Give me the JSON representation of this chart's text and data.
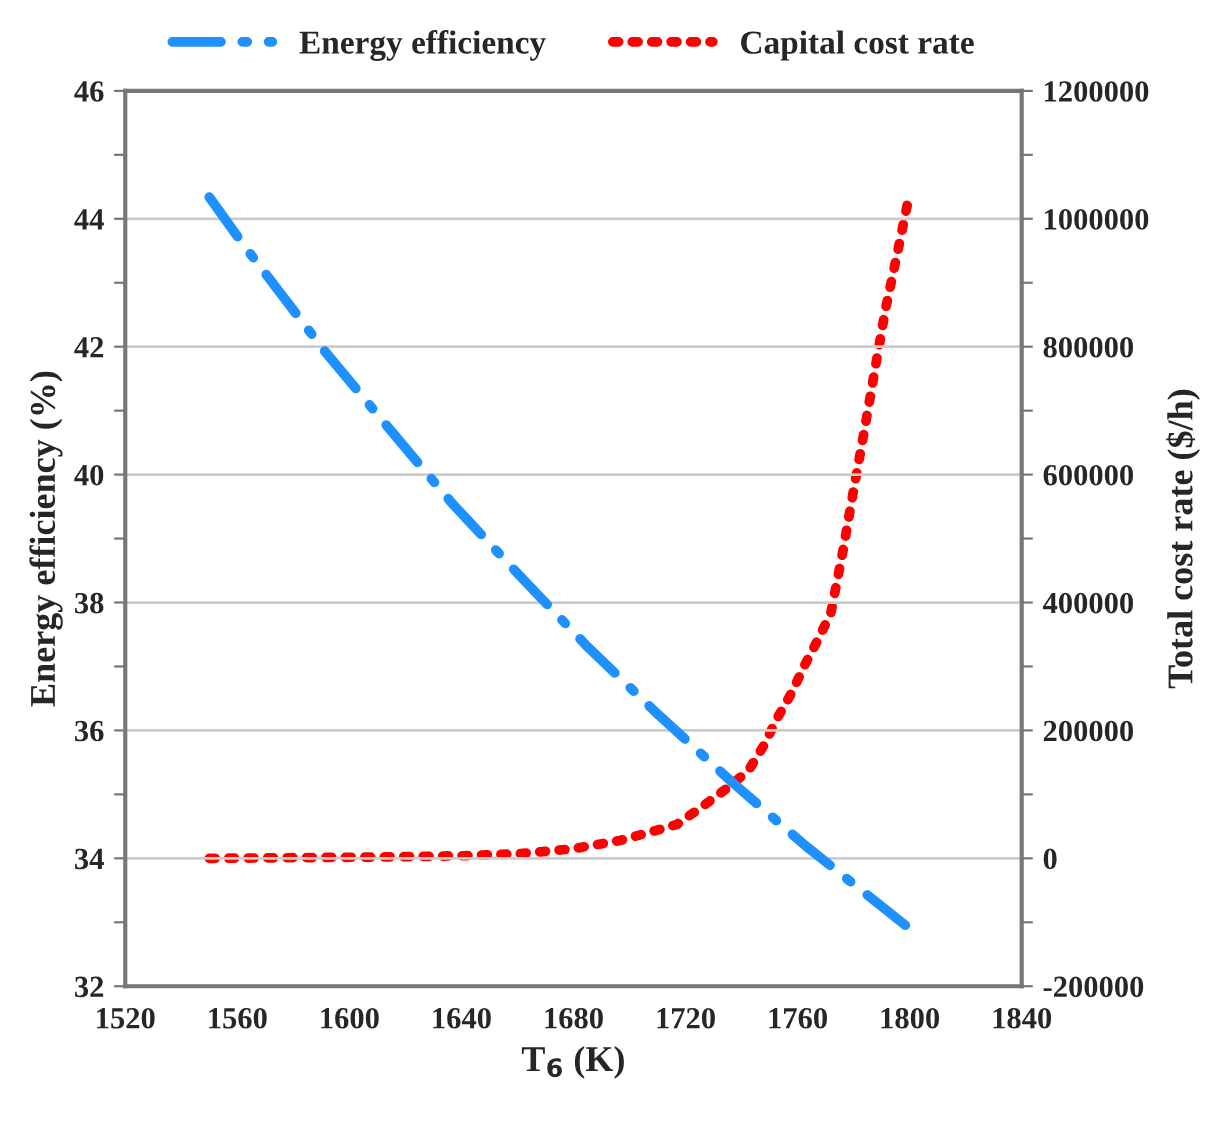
{
  "chart_data": {
    "type": "line",
    "xlabel": "T$_{6}$ (K)",
    "ylabel": "Energy efficiency (%)",
    "y2label": "Total cost rate ($/h)",
    "series": [
      {
        "name": "Energy efficiency",
        "color": "#1e90ff",
        "line_style": "dashdot",
        "x": [
          1550,
          1562.6,
          1591.2,
          1614,
          1636.9,
          1661,
          1685.2,
          1710.2,
          1736.4,
          1763,
          1789.4,
          1800
        ],
        "values": [
          44.34,
          43.57,
          41.93,
          40.73,
          39.54,
          38.41,
          37.3,
          36.25,
          35.2,
          34.19,
          33.27,
          32.9
        ]
      },
      {
        "name": "Capital cost rate",
        "color": "#ff0000",
        "line_style": "dotted",
        "axis": "y2",
        "x": [
          1550,
          1580,
          1610,
          1640,
          1660,
          1680,
          1696.6,
          1706.6,
          1716.9,
          1725.7,
          1734.3,
          1742.4,
          1747.9,
          1752.6,
          1757.9,
          1762.4,
          1767.4,
          1771.9,
          1776.2,
          1780,
          1783.8,
          1787.6,
          1791.4,
          1795.7,
          1800
        ],
        "values": [
          0,
          1000,
          2000,
          4000,
          7000,
          15000,
          28000,
          40000,
          53000,
          80000,
          108000,
          137000,
          176000,
          218000,
          259000,
          301000,
          343000,
          384000,
          481000,
          576000,
          668000,
          764000,
          859000,
          948000,
          1040000
        ]
      }
    ],
    "xlim": [
      1520,
      1840
    ],
    "xticks": [
      1520,
      1560,
      1600,
      1640,
      1680,
      1720,
      1760,
      1800,
      1840
    ],
    "ylim": [
      32,
      46
    ],
    "yticks": [
      32,
      {
        "value": 33,
        "label": null
      },
      34,
      {
        "value": 35,
        "label": null
      },
      36,
      {
        "value": 37,
        "label": null
      },
      38,
      {
        "value": 39,
        "label": null
      },
      40,
      {
        "value": 41,
        "label": null
      },
      42,
      {
        "value": 43,
        "label": null
      },
      44,
      {
        "value": 45,
        "label": null
      },
      46
    ],
    "y2lim": [
      -200000,
      1200000
    ],
    "y2ticks": [
      -200000,
      {
        "value": -100000,
        "label": null
      },
      0,
      {
        "value": 100000,
        "label": null
      },
      200000,
      {
        "value": 300000,
        "label": null
      },
      400000,
      {
        "value": 500000,
        "label": null
      },
      600000,
      {
        "value": 700000,
        "label": null
      },
      800000,
      {
        "value": 900000,
        "label": null
      },
      1000000,
      {
        "value": 1100000,
        "label": null
      },
      1200000
    ],
    "grid": "y",
    "legend": "top"
  }
}
